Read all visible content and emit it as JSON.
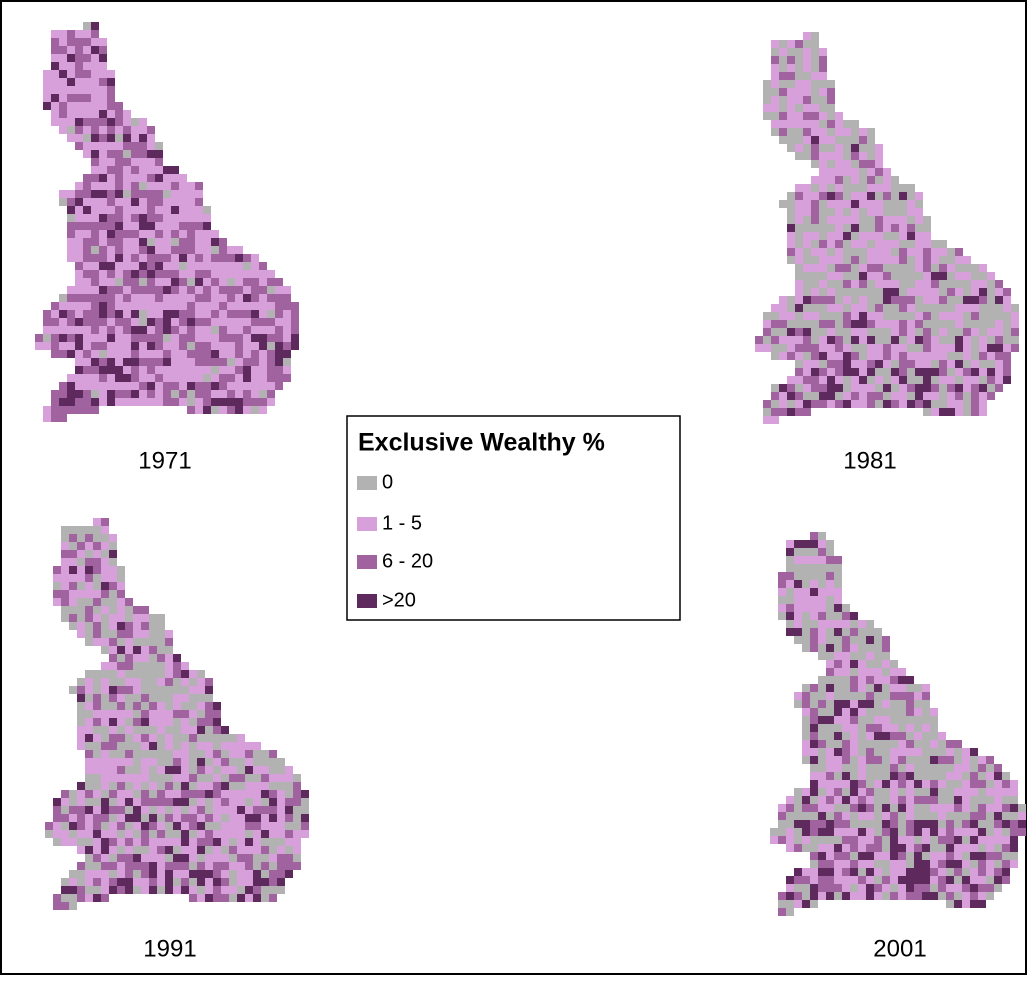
{
  "maps": [
    {
      "label": "1971"
    },
    {
      "label": "1981"
    },
    {
      "label": "1991"
    },
    {
      "label": "2001"
    }
  ],
  "legend": {
    "title": "Exclusive Wealthy %",
    "items": [
      {
        "label": "0",
        "color": "#b2b2b2"
      },
      {
        "label": "1 - 5",
        "color": "#d8a0da"
      },
      {
        "label": "6 - 20",
        "color": "#a0639f"
      },
      {
        "label": ">20",
        "color": "#5e2a5e"
      }
    ]
  }
}
